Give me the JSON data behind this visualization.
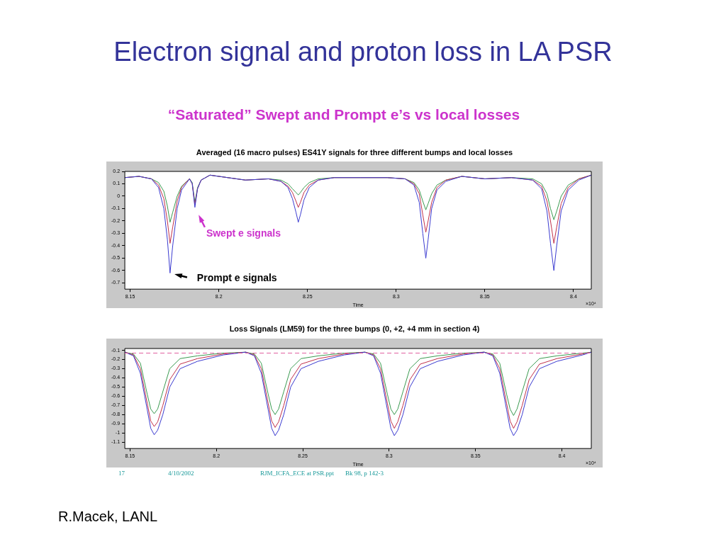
{
  "chart_data": [
    {
      "type": "line",
      "title": "Electron signal and proton loss in LA PSR",
      "subtitle": "“Saturated” Swept and Prompt e’s vs local losses",
      "xlabel": "Time",
      "marker": "none",
      "annotations": [
        "Averaged (16 macro pulses) ES41Y signals for three different bumps and local losses",
        "×10⁴",
        {
          "text": "Swept e signals",
          "x": 8.1865,
          "y": -0.09
        },
        {
          "text": "Prompt e signals",
          "x": 8.1725,
          "y": -0.62
        }
      ],
      "xlim": [
        8.147,
        8.41
      ],
      "xticks": [
        8.15,
        8.2,
        8.25,
        8.3,
        8.35,
        8.4
      ],
      "ylim": [
        -0.75,
        0.2
      ],
      "yticks": [
        -0.7,
        -0.6,
        -0.5,
        -0.4,
        -0.3,
        -0.2,
        -0.1,
        0,
        0.1,
        0.2
      ],
      "x": [
        8.147,
        8.155,
        8.162,
        8.166,
        8.169,
        8.171,
        8.1725,
        8.174,
        8.1765,
        8.179,
        8.182,
        8.1835,
        8.185,
        8.1865,
        8.188,
        8.19,
        8.195,
        8.205,
        8.215,
        8.228,
        8.235,
        8.239,
        8.2415,
        8.2435,
        8.2448,
        8.246,
        8.248,
        8.251,
        8.256,
        8.265,
        8.28,
        8.295,
        8.305,
        8.31,
        8.313,
        8.315,
        8.3167,
        8.318,
        8.32,
        8.323,
        8.328,
        8.337,
        8.35,
        8.365,
        8.377,
        8.382,
        8.385,
        8.387,
        8.3889,
        8.3905,
        8.393,
        8.397,
        8.403,
        8.41
      ],
      "series": [
        {
          "color": "#3b3bd0",
          "values": [
            0.15,
            0.16,
            0.14,
            0.07,
            -0.1,
            -0.35,
            -0.62,
            -0.4,
            -0.1,
            0.05,
            0.11,
            0.14,
            0.1,
            -0.09,
            0.06,
            0.13,
            0.17,
            0.15,
            0.13,
            0.14,
            0.12,
            0.07,
            -0.02,
            -0.13,
            -0.21,
            -0.15,
            -0.03,
            0.07,
            0.13,
            0.15,
            0.15,
            0.15,
            0.14,
            0.09,
            -0.05,
            -0.3,
            -0.5,
            -0.35,
            -0.1,
            0.05,
            0.12,
            0.16,
            0.14,
            0.15,
            0.13,
            0.06,
            -0.12,
            -0.38,
            -0.6,
            -0.4,
            -0.12,
            0.05,
            0.13,
            0.17
          ]
        },
        {
          "color": "#c0304a",
          "values": [
            0.15,
            0.16,
            0.14,
            0.09,
            -0.02,
            -0.2,
            -0.38,
            -0.25,
            -0.04,
            0.07,
            0.12,
            0.14,
            0.1,
            -0.07,
            0.06,
            0.13,
            0.17,
            0.15,
            0.13,
            0.14,
            0.12,
            0.08,
            0.03,
            -0.04,
            -0.09,
            -0.05,
            0.03,
            0.09,
            0.13,
            0.15,
            0.15,
            0.15,
            0.14,
            0.1,
            0.02,
            -0.15,
            -0.29,
            -0.2,
            -0.05,
            0.07,
            0.13,
            0.16,
            0.14,
            0.15,
            0.13,
            0.08,
            -0.04,
            -0.2,
            -0.38,
            -0.25,
            -0.06,
            0.07,
            0.14,
            0.17
          ]
        },
        {
          "color": "#3a9a50",
          "values": [
            0.15,
            0.16,
            0.14,
            0.11,
            0.04,
            -0.08,
            -0.21,
            -0.13,
            0,
            0.08,
            0.12,
            0.14,
            0.11,
            -0.05,
            0.07,
            0.13,
            0.17,
            0.15,
            0.13,
            0.14,
            0.13,
            0.1,
            0.06,
            0.03,
            0.01,
            0.03,
            0.07,
            0.11,
            0.14,
            0.15,
            0.15,
            0.15,
            0.14,
            0.11,
            0.05,
            -0.04,
            -0.11,
            -0.06,
            0.02,
            0.09,
            0.13,
            0.16,
            0.14,
            0.15,
            0.14,
            0.1,
            0.02,
            -0.1,
            -0.19,
            -0.12,
            0,
            0.09,
            0.14,
            0.17
          ]
        }
      ]
    },
    {
      "type": "line",
      "title": "Loss Signals (LM59) for the three bumps (0, +2, +4 mm in section 4)",
      "xlabel": "Time",
      "marker": "none",
      "annotations": [
        "×10⁴",
        "17",
        "4/10/2002",
        "RJM_ICFA_ECE at PSR.ppt",
        "Bk 98,  p 142-3",
        "R.Macek, LANL"
      ],
      "ref_lines": [
        {
          "axis": "y",
          "value": -0.13,
          "color": "#e060a0",
          "line_style": "dashed"
        }
      ],
      "xlim": [
        8.147,
        8.417
      ],
      "xticks": [
        8.15,
        8.2,
        8.25,
        8.3,
        8.35,
        8.4
      ],
      "ylim": [
        -1.17,
        -0.08
      ],
      "yticks": [
        -1.1,
        -1,
        -0.9,
        -0.8,
        -0.7,
        -0.6,
        -0.5,
        -0.4,
        -0.3,
        -0.2,
        -0.1
      ],
      "x": [
        8.147,
        8.152,
        8.156,
        8.16,
        8.162,
        8.164,
        8.166,
        8.169,
        8.173,
        8.179,
        8.189,
        8.204,
        8.217,
        8.222,
        8.226,
        8.23,
        8.232,
        8.234,
        8.236,
        8.239,
        8.243,
        8.249,
        8.259,
        8.274,
        8.286,
        8.291,
        8.295,
        8.299,
        8.301,
        8.303,
        8.305,
        8.308,
        8.312,
        8.318,
        8.328,
        8.343,
        8.355,
        8.36,
        8.364,
        8.368,
        8.37,
        8.372,
        8.374,
        8.377,
        8.381,
        8.387,
        8.397,
        8.412,
        8.417
      ],
      "series": [
        {
          "color": "#3b3bd0",
          "values": [
            -0.12,
            -0.16,
            -0.35,
            -0.75,
            -0.95,
            -1.02,
            -0.97,
            -0.8,
            -0.5,
            -0.3,
            -0.22,
            -0.15,
            -0.12,
            -0.16,
            -0.35,
            -0.75,
            -0.95,
            -1.03,
            -0.97,
            -0.8,
            -0.5,
            -0.3,
            -0.22,
            -0.15,
            -0.12,
            -0.16,
            -0.35,
            -0.75,
            -0.95,
            -1.03,
            -0.97,
            -0.8,
            -0.5,
            -0.3,
            -0.22,
            -0.15,
            -0.12,
            -0.16,
            -0.35,
            -0.75,
            -0.95,
            -1.03,
            -0.97,
            -0.8,
            -0.5,
            -0.3,
            -0.22,
            -0.15,
            -0.12
          ]
        },
        {
          "color": "#c0304a",
          "values": [
            -0.12,
            -0.15,
            -0.3,
            -0.68,
            -0.87,
            -0.93,
            -0.88,
            -0.7,
            -0.42,
            -0.25,
            -0.19,
            -0.14,
            -0.12,
            -0.15,
            -0.3,
            -0.68,
            -0.87,
            -0.94,
            -0.88,
            -0.7,
            -0.42,
            -0.25,
            -0.19,
            -0.14,
            -0.12,
            -0.15,
            -0.3,
            -0.68,
            -0.87,
            -0.95,
            -0.88,
            -0.7,
            -0.42,
            -0.25,
            -0.19,
            -0.14,
            -0.12,
            -0.15,
            -0.3,
            -0.68,
            -0.87,
            -0.95,
            -0.88,
            -0.7,
            -0.42,
            -0.25,
            -0.19,
            -0.14,
            -0.12
          ]
        },
        {
          "color": "#3a9a50",
          "values": [
            -0.12,
            -0.14,
            -0.24,
            -0.58,
            -0.74,
            -0.79,
            -0.74,
            -0.55,
            -0.3,
            -0.19,
            -0.16,
            -0.13,
            -0.12,
            -0.14,
            -0.24,
            -0.58,
            -0.74,
            -0.8,
            -0.74,
            -0.55,
            -0.3,
            -0.19,
            -0.16,
            -0.13,
            -0.12,
            -0.14,
            -0.24,
            -0.58,
            -0.74,
            -0.8,
            -0.74,
            -0.55,
            -0.3,
            -0.19,
            -0.16,
            -0.13,
            -0.12,
            -0.14,
            -0.24,
            -0.58,
            -0.74,
            -0.81,
            -0.74,
            -0.55,
            -0.3,
            -0.19,
            -0.16,
            -0.13,
            -0.12
          ]
        }
      ]
    }
  ]
}
